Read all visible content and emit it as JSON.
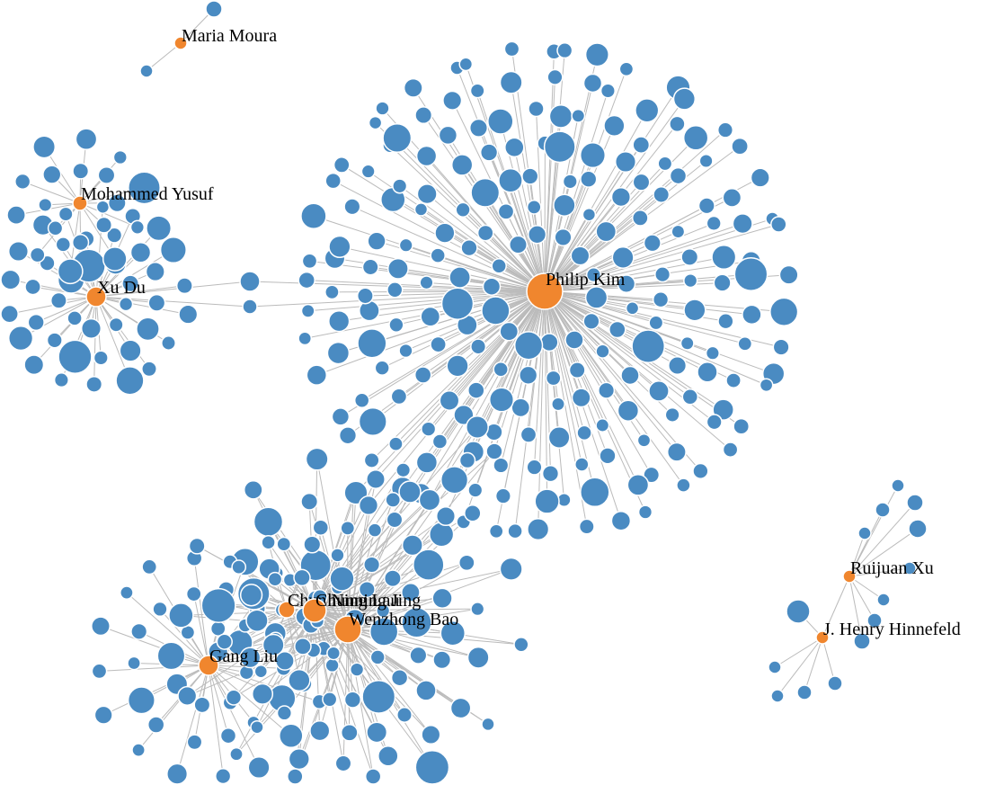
{
  "colors": {
    "hub": "#f0862e",
    "leaf": "#4a8bc2",
    "link": "#bbbbbb"
  },
  "graph": {
    "hubs": [
      {
        "id": "maria-moura",
        "label": "Maria Moura"
      },
      {
        "id": "mohammed-yusuf",
        "label": "Mohammed Yusuf"
      },
      {
        "id": "xu-du",
        "label": "Xu Du"
      },
      {
        "id": "philip-kim",
        "label": "Philip Kim"
      },
      {
        "id": "chun-ning-lau",
        "label": "Chun Ning Lau"
      },
      {
        "id": "chunning-jing",
        "label": "Chunning Jing"
      },
      {
        "id": "wenzhong-bao",
        "label": "Wenzhong Bao"
      },
      {
        "id": "gang-liu",
        "label": "Gang Liu"
      },
      {
        "id": "ruijuan-xu",
        "label": "Ruijuan Xu"
      },
      {
        "id": "j-henry-hinnefeld",
        "label": "J. Henry Hinnefeld"
      }
    ]
  }
}
